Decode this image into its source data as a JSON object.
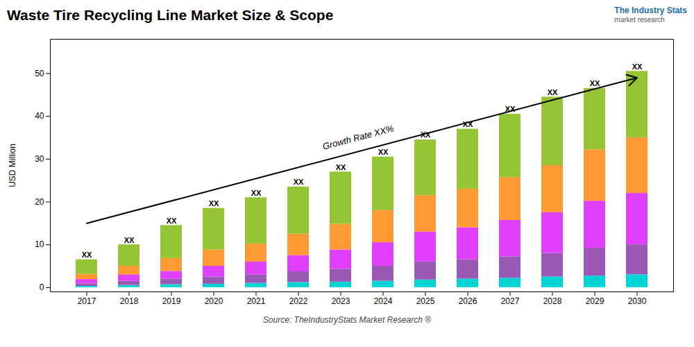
{
  "chart_data": {
    "type": "bar",
    "stacked": true,
    "title": "Waste Tire Recycling Line Market Size & Scope",
    "ylabel": "USD Million",
    "source": "Source: TheIndustryStats Market Research ®",
    "logo": [
      {
        "text": "The Industry Stats",
        "color": "#1B6CA8"
      },
      {
        "text": "market research",
        "color": "#555555"
      }
    ],
    "categories": [
      "2017",
      "2018",
      "2019",
      "2020",
      "2021",
      "2022",
      "2023",
      "2024",
      "2025",
      "2026",
      "2027",
      "2028",
      "2029",
      "2030"
    ],
    "series": [
      {
        "color": "#00D4D4",
        "values": [
          0.3,
          0.5,
          0.7,
          0.8,
          1.0,
          1.2,
          1.3,
          1.5,
          1.8,
          2.0,
          2.2,
          2.5,
          2.7,
          3.0
        ]
      },
      {
        "color": "#9B59B6",
        "values": [
          0.6,
          1.0,
          1.3,
          1.7,
          2.0,
          2.5,
          3.0,
          3.5,
          4.2,
          4.5,
          5.0,
          5.5,
          6.5,
          7.0
        ]
      },
      {
        "color": "#E040FB",
        "values": [
          1.0,
          1.5,
          1.8,
          2.5,
          3.0,
          3.8,
          4.5,
          5.5,
          7.0,
          7.5,
          8.5,
          9.5,
          11.0,
          12.0
        ]
      },
      {
        "color": "#FF9933",
        "values": [
          1.2,
          2.0,
          3.0,
          3.8,
          4.2,
          5.0,
          6.0,
          7.5,
          8.5,
          9.0,
          10.0,
          11.0,
          12.0,
          13.0
        ]
      },
      {
        "color": "#95C435",
        "values": [
          3.4,
          5.0,
          7.7,
          9.7,
          10.8,
          11.0,
          12.2,
          12.5,
          13.0,
          14.0,
          14.8,
          16.0,
          14.3,
          15.5
        ]
      }
    ],
    "annotations": [
      {
        "text": "XX",
        "x": "2017",
        "y": 6.5
      },
      {
        "text": "XX",
        "x": "2018",
        "y": 10.0
      },
      {
        "text": "XX",
        "x": "2019",
        "y": 14.5
      },
      {
        "text": "XX",
        "x": "2020",
        "y": 18.5
      },
      {
        "text": "XX",
        "x": "2021",
        "y": 21.0
      },
      {
        "text": "XX",
        "x": "2022",
        "y": 23.5
      },
      {
        "text": "XX",
        "x": "2023",
        "y": 27.0
      },
      {
        "text": "XX",
        "x": "2024",
        "y": 30.5
      },
      {
        "text": "XX",
        "x": "2025",
        "y": 34.5
      },
      {
        "text": "XX",
        "x": "2026",
        "y": 37.0
      },
      {
        "text": "XX",
        "x": "2027",
        "y": 40.5
      },
      {
        "text": "XX",
        "x": "2028",
        "y": 44.5
      },
      {
        "text": "XX",
        "x": "2029",
        "y": 46.5
      },
      {
        "text": "XX",
        "x": "2030",
        "y": 50.5
      },
      {
        "text": "Growth Rate XX%",
        "arrow": {
          "x1": "2017",
          "y1": 15.0,
          "x2": "2030",
          "y2": 49.0
        }
      }
    ],
    "ylim": [
      -1,
      58
    ],
    "yticks": [
      0,
      10,
      20,
      30,
      40,
      50
    ],
    "grid": false
  }
}
